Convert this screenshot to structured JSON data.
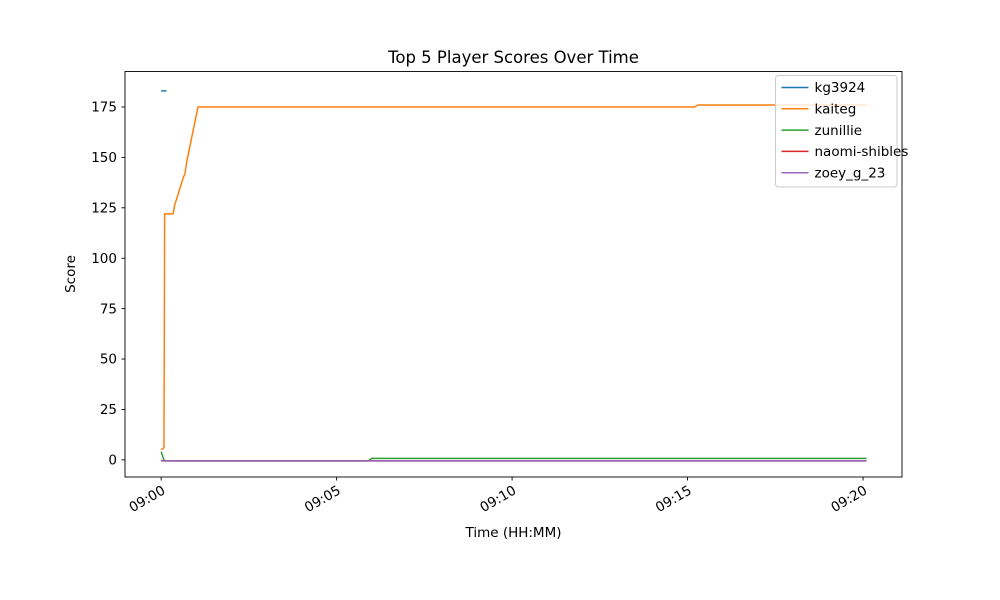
{
  "chart_data": {
    "type": "line",
    "title": "Top 5 Player Scores Over Time",
    "xlabel": "Time (HH:MM)",
    "ylabel": "Score",
    "x_unit": "minutes after 09:00",
    "xlim": [
      -1.03,
      21.11
    ],
    "ylim": [
      -8.5,
      192.6
    ],
    "grid": false,
    "legend_position": "upper right",
    "x_ticks": [
      {
        "value": 0,
        "label": "09:00"
      },
      {
        "value": 5,
        "label": "09:05"
      },
      {
        "value": 10,
        "label": "09:10"
      },
      {
        "value": 15,
        "label": "09:15"
      },
      {
        "value": 20,
        "label": "09:20"
      }
    ],
    "y_ticks": [
      0,
      25,
      50,
      75,
      100,
      125,
      150,
      175
    ],
    "series": [
      {
        "name": "kg3924",
        "color": "#1f77b4",
        "points": [
          [
            0,
            183
          ],
          [
            0.15,
            183
          ]
        ]
      },
      {
        "name": "kaiteg",
        "color": "#ff7f0e",
        "points": [
          [
            0,
            5
          ],
          [
            0.08,
            6
          ],
          [
            0.1,
            122
          ],
          [
            0.34,
            122
          ],
          [
            0.38,
            126
          ],
          [
            0.63,
            140
          ],
          [
            0.68,
            142
          ],
          [
            0.73,
            148
          ],
          [
            1.05,
            175
          ],
          [
            15.2,
            175
          ],
          [
            15.3,
            176
          ],
          [
            20.1,
            176
          ]
        ]
      },
      {
        "name": "zunillie",
        "color": "#2ca02c",
        "points": [
          [
            0,
            4
          ],
          [
            0.06,
            1
          ],
          [
            0.1,
            -0.5
          ],
          [
            5.9,
            -0.5
          ],
          [
            6.0,
            0.75
          ],
          [
            20.1,
            0.75
          ]
        ]
      },
      {
        "name": "naomi-shibles",
        "color": "#d62728",
        "points": [
          [
            0,
            -0.5
          ],
          [
            20.1,
            -0.5
          ]
        ]
      },
      {
        "name": "zoey_g_23",
        "color": "#9467bd",
        "points": [
          [
            0,
            0
          ],
          [
            0.05,
            -0.5
          ],
          [
            20.1,
            -0.5
          ]
        ]
      }
    ]
  },
  "style": {
    "background": "#ffffff",
    "axes_color": "#000000",
    "legend_border_color": "#cccccc",
    "legend_background": "rgba(255,255,255,0.8)"
  }
}
